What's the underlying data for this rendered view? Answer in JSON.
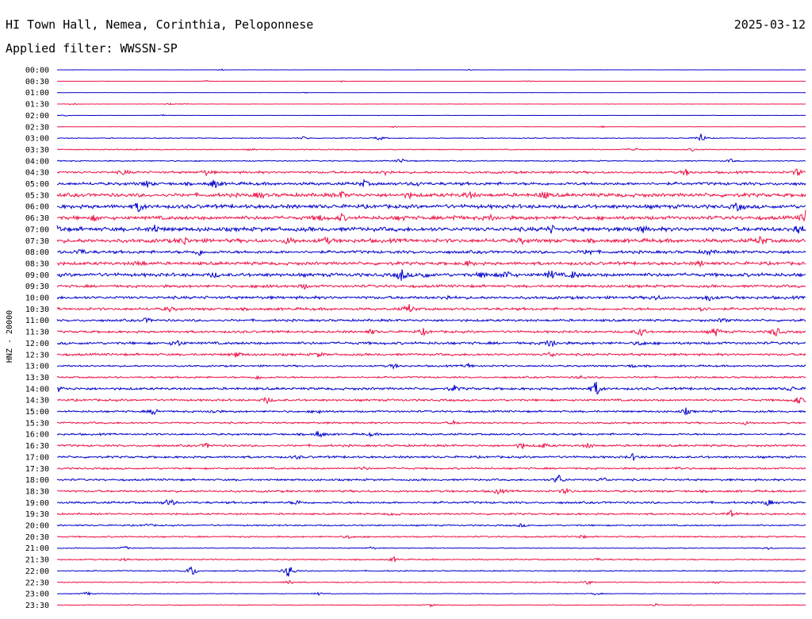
{
  "header": {
    "station": "HI Town Hall, Nemea, Corinthia, Peloponnese",
    "date": "2025-03-12",
    "filter": "Applied filter: WWSSN-SP"
  },
  "chart_data": {
    "type": "line",
    "ylabel": "HNZ - 20000",
    "colors": {
      "even": "#0000cc",
      "odd": "#ee1144"
    },
    "times": [
      "00:00",
      "00:30",
      "01:00",
      "01:30",
      "02:00",
      "02:30",
      "03:00",
      "03:30",
      "04:00",
      "04:30",
      "05:00",
      "05:30",
      "06:00",
      "06:30",
      "07:00",
      "07:30",
      "08:00",
      "08:30",
      "09:00",
      "09:30",
      "10:00",
      "10:30",
      "11:00",
      "11:30",
      "12:00",
      "12:30",
      "13:00",
      "13:30",
      "14:00",
      "14:30",
      "15:00",
      "15:30",
      "16:00",
      "16:30",
      "17:00",
      "17:30",
      "18:00",
      "18:30",
      "19:00",
      "19:30",
      "20:00",
      "20:30",
      "21:00",
      "21:30",
      "22:00",
      "22:30",
      "23:00",
      "23:30"
    ],
    "noise_level": [
      0.1,
      0.1,
      0.1,
      0.15,
      0.15,
      0.15,
      0.5,
      0.6,
      0.7,
      1.4,
      1.8,
      2.2,
      2.3,
      2.2,
      2.5,
      2.3,
      1.8,
      1.9,
      2.1,
      1.6,
      1.7,
      1.6,
      1.4,
      1.4,
      1.6,
      1.4,
      1.1,
      1.1,
      1.5,
      1.3,
      1.2,
      1.1,
      1.2,
      1.3,
      1.3,
      1.1,
      1.2,
      1.3,
      1.3,
      1.1,
      0.9,
      0.9,
      0.5,
      0.8,
      0.7,
      0.6,
      0.4,
      0.5
    ],
    "events": [
      [
        [
          0.22,
          1
        ],
        [
          0.55,
          1
        ]
      ],
      [
        [
          0.2,
          1
        ],
        [
          0.38,
          1
        ],
        [
          0.63,
          1
        ]
      ],
      [
        [
          0.33,
          1
        ]
      ],
      [
        [
          0.02,
          1.5
        ],
        [
          0.15,
          1
        ],
        [
          0.17,
          1
        ]
      ],
      [
        [
          0.01,
          1
        ],
        [
          0.14,
          1.5
        ]
      ],
      [
        [
          0.45,
          1
        ],
        [
          0.73,
          1
        ]
      ],
      [
        [
          0.33,
          2
        ],
        [
          0.43,
          3
        ],
        [
          0.86,
          6
        ]
      ],
      [
        [
          0.11,
          1
        ],
        [
          0.26,
          1
        ],
        [
          0.77,
          3
        ],
        [
          0.85,
          2
        ]
      ],
      [
        [
          0.46,
          3
        ],
        [
          0.9,
          2
        ]
      ],
      [
        [
          0.09,
          3
        ],
        [
          0.2,
          4
        ],
        [
          0.44,
          4
        ],
        [
          0.84,
          4
        ],
        [
          0.99,
          5
        ]
      ],
      [
        [
          0.12,
          4
        ],
        [
          0.21,
          6
        ],
        [
          0.41,
          4
        ],
        [
          0.48,
          3
        ]
      ],
      [
        [
          0.27,
          4
        ],
        [
          0.38,
          4
        ],
        [
          0.47,
          3
        ],
        [
          0.55,
          5
        ],
        [
          0.65,
          5
        ]
      ],
      [
        [
          0.11,
          7
        ],
        [
          0.91,
          5
        ]
      ],
      [
        [
          0.05,
          3
        ],
        [
          0.35,
          4
        ],
        [
          0.38,
          4
        ],
        [
          0.46,
          3
        ],
        [
          0.53,
          3
        ],
        [
          0.58,
          3
        ],
        [
          1.0,
          9
        ]
      ],
      [
        [
          0.0,
          5
        ],
        [
          0.13,
          5
        ],
        [
          0.66,
          4
        ],
        [
          0.78,
          4
        ],
        [
          0.99,
          8
        ]
      ],
      [
        [
          0.17,
          5
        ],
        [
          0.31,
          5
        ],
        [
          0.36,
          4
        ],
        [
          0.62,
          3
        ],
        [
          0.94,
          6
        ]
      ],
      [
        [
          0.03,
          5
        ],
        [
          0.19,
          4
        ],
        [
          0.71,
          5
        ],
        [
          0.87,
          3
        ]
      ],
      [
        [
          0.11,
          4
        ],
        [
          0.55,
          3
        ],
        [
          0.86,
          3
        ]
      ],
      [
        [
          0.21,
          3
        ],
        [
          0.46,
          8
        ],
        [
          0.49,
          4
        ],
        [
          0.57,
          5
        ],
        [
          0.6,
          6
        ],
        [
          0.66,
          6
        ],
        [
          0.69,
          5
        ]
      ],
      [
        [
          0.28,
          3
        ],
        [
          0.33,
          3
        ]
      ],
      [
        [
          0.52,
          3
        ],
        [
          0.8,
          3
        ],
        [
          0.87,
          5
        ]
      ],
      [
        [
          0.15,
          3
        ],
        [
          0.47,
          6
        ],
        [
          0.86,
          5
        ]
      ],
      [
        [
          0.12,
          3
        ],
        [
          0.89,
          3
        ]
      ],
      [
        [
          0.42,
          3
        ],
        [
          0.49,
          4
        ],
        [
          0.78,
          6
        ],
        [
          0.88,
          6
        ],
        [
          0.96,
          7
        ]
      ],
      [
        [
          0.16,
          5
        ],
        [
          0.66,
          7
        ],
        [
          0.78,
          3
        ]
      ],
      [
        [
          0.24,
          4
        ],
        [
          0.35,
          3
        ],
        [
          0.66,
          4
        ]
      ],
      [
        [
          0.45,
          3
        ],
        [
          0.55,
          3
        ],
        [
          0.77,
          2
        ]
      ],
      [
        [
          0.27,
          3
        ],
        [
          0.7,
          2
        ]
      ],
      [
        [
          0.0,
          5
        ],
        [
          0.53,
          4
        ],
        [
          0.72,
          10
        ],
        [
          0.98,
          3
        ]
      ],
      [
        [
          0.28,
          4
        ],
        [
          0.99,
          5
        ]
      ],
      [
        [
          0.13,
          5
        ],
        [
          0.21,
          3
        ],
        [
          0.35,
          3
        ],
        [
          0.84,
          4
        ]
      ],
      [
        [
          0.53,
          2
        ],
        [
          0.92,
          2
        ]
      ],
      [
        [
          0.35,
          5
        ],
        [
          0.42,
          2
        ]
      ],
      [
        [
          0.2,
          3
        ],
        [
          0.62,
          4
        ],
        [
          0.65,
          3
        ],
        [
          0.71,
          3
        ]
      ],
      [
        [
          0.32,
          2
        ],
        [
          0.77,
          4
        ]
      ],
      [
        [
          0.41,
          2
        ],
        [
          0.83,
          2
        ]
      ],
      [
        [
          0.67,
          7
        ],
        [
          0.73,
          3
        ]
      ],
      [
        [
          0.59,
          4
        ],
        [
          0.68,
          4
        ]
      ],
      [
        [
          0.15,
          6
        ],
        [
          0.32,
          3
        ],
        [
          0.95,
          4
        ]
      ],
      [
        [
          0.45,
          2
        ],
        [
          0.9,
          4
        ]
      ],
      [
        [
          0.12,
          2
        ],
        [
          0.62,
          2
        ]
      ],
      [
        [
          0.39,
          2
        ],
        [
          0.7,
          2
        ]
      ],
      [
        [
          0.09,
          3
        ],
        [
          0.42,
          2
        ],
        [
          0.95,
          2
        ]
      ],
      [
        [
          0.09,
          2
        ],
        [
          0.45,
          3
        ],
        [
          0.72,
          2
        ]
      ],
      [
        [
          0.18,
          8
        ],
        [
          0.31,
          10
        ]
      ],
      [
        [
          0.31,
          4
        ],
        [
          0.71,
          3
        ],
        [
          0.88,
          2
        ]
      ],
      [
        [
          0.04,
          3
        ],
        [
          0.35,
          2
        ],
        [
          0.72,
          2
        ]
      ],
      [
        [
          0.5,
          2
        ],
        [
          0.8,
          2
        ]
      ]
    ]
  }
}
